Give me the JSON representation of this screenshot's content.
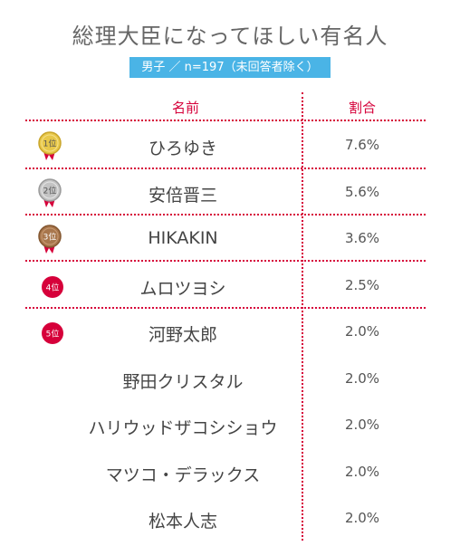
{
  "title": "総理大臣になってほしい有名人",
  "subtitle": "男子 ／ n=197（未回答者除く）",
  "header": {
    "name": "名前",
    "ratio": "割合"
  },
  "colors": {
    "accent": "#d6003a",
    "subtitle_bg": "#4ab4e6",
    "gold": "#e2c23a",
    "silver": "#b5b5b5",
    "bronze": "#a8764c",
    "red": "#d6003a"
  },
  "rows": [
    {
      "rank": "1位",
      "badge": "gold-medal-icon",
      "name": "ひろゆき",
      "ratio": "7.6%"
    },
    {
      "rank": "2位",
      "badge": "silver-medal-icon",
      "name": "安倍晋三",
      "ratio": "5.6%"
    },
    {
      "rank": "3位",
      "badge": "bronze-medal-icon",
      "name": "HIKAKIN",
      "ratio": "3.6%"
    },
    {
      "rank": "4位",
      "badge": "red-circle-icon",
      "name": "ムロツヨシ",
      "ratio": "2.5%"
    },
    {
      "rank": "5位",
      "badge": "red-circle-icon",
      "name": "河野太郎",
      "ratio": "2.0%"
    },
    {
      "name": "野田クリスタル",
      "ratio": "2.0%"
    },
    {
      "name": "ハリウッドザコシショウ",
      "ratio": "2.0%"
    },
    {
      "name": "マツコ・デラックス",
      "ratio": "2.0%"
    },
    {
      "name": "松本人志",
      "ratio": "2.0%"
    }
  ]
}
